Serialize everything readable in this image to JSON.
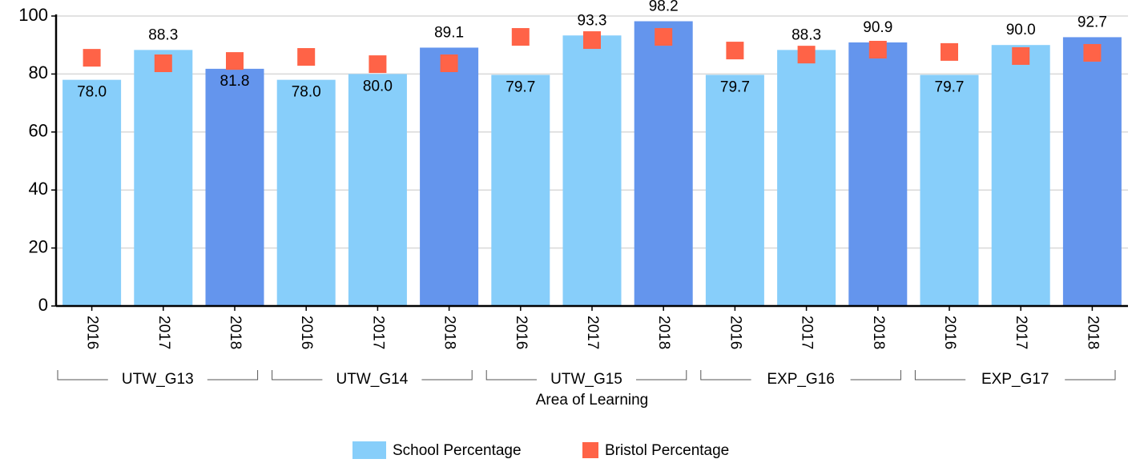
{
  "chart_data": {
    "type": "bar",
    "x_label": "Area of Learning",
    "categories": [
      "2016",
      "2017",
      "2018",
      "2016",
      "2017",
      "2018",
      "2016",
      "2017",
      "2018",
      "2016",
      "2017",
      "2018",
      "2016",
      "2017",
      "2018"
    ],
    "groups": [
      "UTW_G13",
      "UTW_G14",
      "UTW_G15",
      "EXP_G16",
      "EXP_G17"
    ],
    "series": [
      {
        "name": "School Percentage",
        "color": "#87cefa",
        "kind": "bar",
        "colors": [
          "#87cefa",
          "#87cefa",
          "#6495ed",
          "#87cefa",
          "#87cefa",
          "#6495ed",
          "#87cefa",
          "#87cefa",
          "#6495ed",
          "#87cefa",
          "#87cefa",
          "#6495ed",
          "#87cefa",
          "#87cefa",
          "#6495ed"
        ],
        "values": [
          78.0,
          88.3,
          81.8,
          78.0,
          80.0,
          89.1,
          79.7,
          93.3,
          98.2,
          79.7,
          88.3,
          90.9,
          79.7,
          90.0,
          92.7
        ],
        "value_labels": [
          "78.0",
          "88.3",
          "81.8",
          "78.0",
          "80.0",
          "89.1",
          "79.7",
          "93.3",
          "98.2",
          "79.7",
          "88.3",
          "90.9",
          "79.7",
          "90.0",
          "92.7"
        ]
      },
      {
        "name": "Bristol Percentage",
        "color": "#ff6347",
        "kind": "marker",
        "values": [
          85.6,
          83.7,
          84.5,
          85.9,
          83.4,
          83.7,
          92.8,
          91.7,
          92.8,
          88.1,
          86.7,
          88.4,
          87.6,
          86.2,
          87.3
        ]
      }
    ],
    "ylim": [
      0,
      100
    ],
    "yticks": [
      0,
      20,
      40,
      60,
      80,
      100
    ],
    "grid": true,
    "legend": "bottom"
  }
}
